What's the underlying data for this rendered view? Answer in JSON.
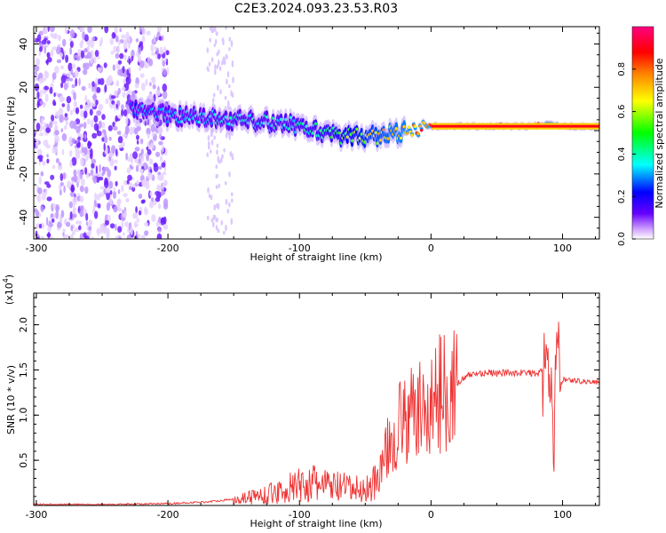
{
  "title": "C2E3.2024.093.23.53.R03",
  "chart_data": [
    {
      "type": "heatmap",
      "xlabel": "Height of straight line (km)",
      "ylabel": "Frequency (Hz)",
      "xlim": [
        -302,
        128
      ],
      "ylim": [
        -50,
        48
      ],
      "x_ticks": [
        -300,
        -200,
        -100,
        0,
        100
      ],
      "x_tick_labels": [
        "-300",
        "-200",
        "-100",
        "0",
        "100"
      ],
      "y_ticks": [
        -40,
        -20,
        0,
        20,
        40
      ],
      "y_tick_labels": [
        "-40",
        "-20",
        "0",
        "20",
        "40"
      ],
      "colorbar": {
        "label": "Normalized spectral amplitude",
        "range": [
          0,
          1
        ],
        "ticks": [
          0.0,
          0.2,
          0.4,
          0.6,
          0.8
        ],
        "tick_labels": [
          "0.0",
          "0.2",
          "0.4",
          "0.6",
          "0.8"
        ],
        "colormap": [
          "#ffffff",
          "#6600ff",
          "#0000ff",
          "#00ffff",
          "#00ff00",
          "#ffff00",
          "#ff8000",
          "#ff0000",
          "#ff0080"
        ]
      },
      "ridge": {
        "x": [
          -225,
          -200,
          -175,
          -150,
          -125,
          -100,
          -75,
          -50,
          -25,
          0,
          25,
          50,
          75,
          90,
          100,
          128
        ],
        "frequency": [
          9,
          7,
          6,
          5,
          4,
          2,
          -2,
          -3,
          -1,
          2,
          2,
          2,
          2,
          3,
          2,
          2
        ],
        "peak_amplitude": [
          0.3,
          0.35,
          0.35,
          0.4,
          0.4,
          0.42,
          0.5,
          0.7,
          0.8,
          0.9,
          0.95,
          0.95,
          0.95,
          0.9,
          0.95,
          0.95
        ]
      },
      "noise_region": {
        "x_from": -302,
        "x_to": -200,
        "amplitude": 0.1
      }
    },
    {
      "type": "line",
      "xlabel": "Height of straight line (km)",
      "ylabel": "SNR (10 * v/v)",
      "y_multiplier": "(x10",
      "y_multiplier_exp": "4",
      "y_multiplier_close": ")",
      "xlim": [
        -302,
        128
      ],
      "ylim": [
        0,
        2.35
      ],
      "x_ticks": [
        -300,
        -200,
        -100,
        0,
        100
      ],
      "x_tick_labels": [
        "-300",
        "-200",
        "-100",
        "0",
        "100"
      ],
      "y_ticks": [
        0.5,
        1.0,
        1.5,
        2.0
      ],
      "y_tick_labels": [
        "0.5",
        "1.0",
        "1.5",
        "2.0"
      ],
      "color": "#ee3333",
      "series": [
        {
          "x": [
            -302,
            -250,
            -200,
            -170,
            -150,
            -125,
            -110,
            -100,
            -90,
            -80,
            -70,
            -60,
            -50,
            -40,
            -35,
            -30,
            -25,
            -22,
            -20,
            -15,
            -10,
            -5,
            0,
            10,
            20,
            30,
            40,
            50,
            60,
            70,
            80,
            85,
            90,
            93,
            95,
            98,
            100,
            110,
            120,
            128
          ],
          "y": [
            0.01,
            0.01,
            0.02,
            0.04,
            0.07,
            0.12,
            0.18,
            0.22,
            0.24,
            0.22,
            0.2,
            0.18,
            0.17,
            0.3,
            0.55,
            0.75,
            0.82,
            1.05,
            0.9,
            1.0,
            1.05,
            1.02,
            1.1,
            1.3,
            1.35,
            1.45,
            1.47,
            1.46,
            1.47,
            1.47,
            1.46,
            1.48,
            1.6,
            0.5,
            1.8,
            1.45,
            1.4,
            1.38,
            1.37,
            1.36
          ]
        }
      ]
    }
  ]
}
